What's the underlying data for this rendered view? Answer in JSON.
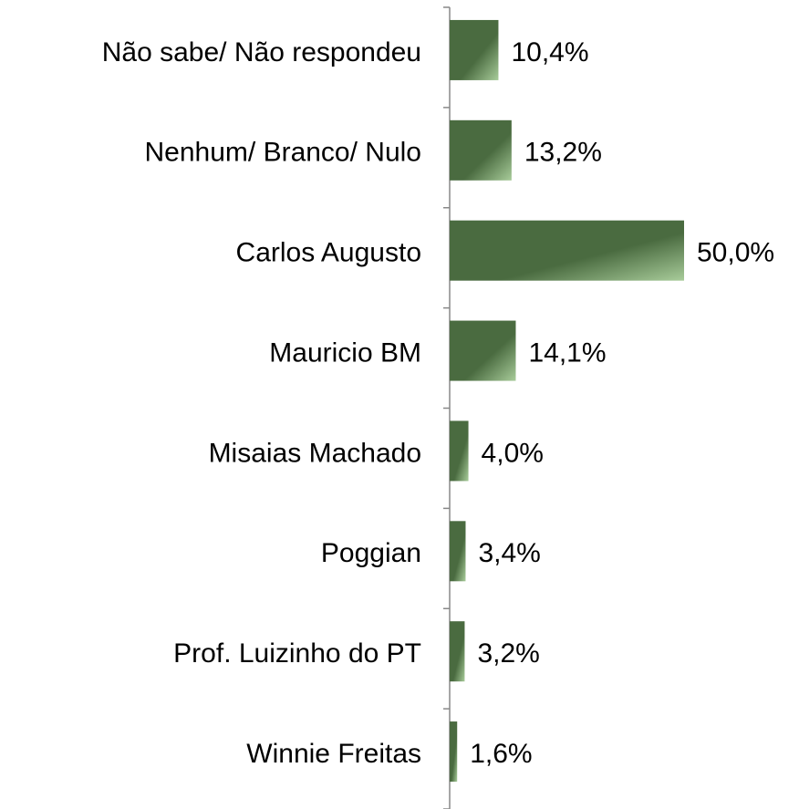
{
  "chart_data": {
    "type": "bar",
    "orientation": "horizontal",
    "categories": [
      "Não sabe/ Não respondeu",
      "Nenhum/ Branco/ Nulo",
      "Carlos Augusto",
      "Mauricio BM",
      "Misaias Machado",
      "Poggian",
      "Prof. Luizinho do PT",
      "Winnie Freitas"
    ],
    "values": [
      10.4,
      13.2,
      50.0,
      14.1,
      4.0,
      3.4,
      3.2,
      1.6
    ],
    "value_labels": [
      "10,4%",
      "13,2%",
      "50,0%",
      "14,1%",
      "4,0%",
      "3,4%",
      "3,2%",
      "1,6%"
    ],
    "color": "#4a6b40",
    "xlim": [
      0,
      50
    ]
  }
}
